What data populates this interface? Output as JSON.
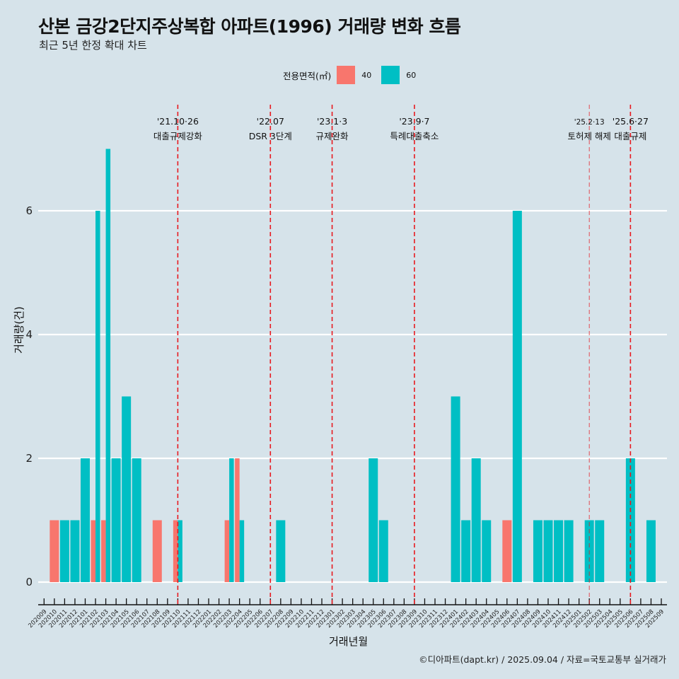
{
  "title": "산본 금강2단지주상복합 아파트(1996) 거래량 변화 흐름",
  "subtitle": "최근 5년 한정 확대 차트",
  "caption": "©디아파트(dapt.kr) / 2025.09.04 / 자료=국토교통부 실거래가",
  "colors": {
    "background": "#d6e3ea",
    "grid": "#ffffff",
    "area40": "#f8766d",
    "area60": "#00bfc4",
    "event_line": "#e8191f"
  },
  "chart_data": {
    "type": "bar",
    "title": "산본 금강2단지주상복합 아파트(1996) 거래량 변화 흐름",
    "subtitle": "최근 5년 한정 확대 차트",
    "xlabel": "거래년월",
    "ylabel": "거래량(건)",
    "ylim": [
      0,
      7
    ],
    "yticks": [
      0,
      2,
      4,
      6
    ],
    "grid": true,
    "position": "dodge",
    "legend": {
      "title": "전용면적(㎡)",
      "placement": "top",
      "entries": [
        {
          "key": "40",
          "label": "40"
        },
        {
          "key": "60",
          "label": "60"
        }
      ]
    },
    "categories": [
      "202009",
      "202010",
      "202011",
      "202012",
      "202101",
      "202102",
      "202103",
      "202104",
      "202105",
      "202106",
      "202107",
      "202108",
      "202109",
      "202110",
      "202111",
      "202112",
      "202201",
      "202202",
      "202203",
      "202204",
      "202205",
      "202206",
      "202207",
      "202208",
      "202209",
      "202210",
      "202211",
      "202212",
      "202301",
      "202302",
      "202303",
      "202304",
      "202305",
      "202306",
      "202307",
      "202308",
      "202309",
      "202310",
      "202311",
      "202312",
      "202401",
      "202402",
      "202403",
      "202404",
      "202405",
      "202406",
      "202407",
      "202408",
      "202409",
      "202410",
      "202411",
      "202412",
      "202501",
      "202502",
      "202503",
      "202504",
      "202505",
      "202506",
      "202507",
      "202508",
      "202509"
    ],
    "series": [
      {
        "name": "40",
        "values": [
          0,
          1,
          0,
          0,
          0,
          1,
          1,
          0,
          0,
          0,
          0,
          1,
          0,
          1,
          0,
          0,
          0,
          0,
          1,
          2,
          0,
          0,
          0,
          0,
          0,
          0,
          0,
          0,
          0,
          0,
          0,
          0,
          0,
          0,
          0,
          0,
          0,
          0,
          0,
          0,
          0,
          0,
          0,
          0,
          0,
          1,
          0,
          0,
          0,
          0,
          0,
          0,
          0,
          0,
          0,
          0,
          0,
          0,
          0,
          0,
          0
        ]
      },
      {
        "name": "60",
        "values": [
          0,
          0,
          1,
          1,
          2,
          6,
          7,
          2,
          3,
          2,
          0,
          0,
          0,
          1,
          0,
          0,
          0,
          0,
          2,
          1,
          0,
          0,
          0,
          1,
          0,
          0,
          0,
          0,
          0,
          0,
          0,
          0,
          2,
          1,
          0,
          0,
          0,
          0,
          0,
          0,
          3,
          1,
          2,
          1,
          0,
          0,
          6,
          0,
          1,
          1,
          1,
          1,
          0,
          1,
          1,
          0,
          0,
          2,
          0,
          1,
          0
        ]
      }
    ],
    "annotations": [
      {
        "at": "202110",
        "date": "'21.10·26",
        "label": "대출규제강화",
        "style": "major"
      },
      {
        "at": "202207",
        "date": "'22.07",
        "label": "DSR 3단계",
        "style": "major"
      },
      {
        "at": "202301",
        "date": "'23.1·3",
        "label": "규제완화",
        "style": "major"
      },
      {
        "at": "202309",
        "date": "'23.9·7",
        "label": "특례대출축소",
        "style": "major"
      },
      {
        "at": "202502",
        "date": "'25.2·13",
        "label": "토허제 해제",
        "style": "minor"
      },
      {
        "at": "202506",
        "date": "'25.6·27",
        "label": "대출규제",
        "style": "major"
      }
    ]
  }
}
